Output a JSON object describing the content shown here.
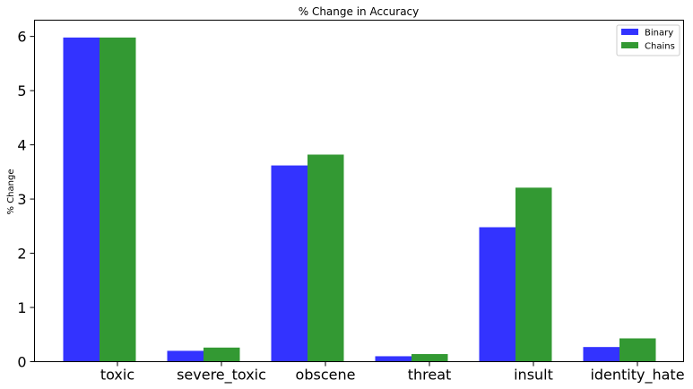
{
  "chart_data": {
    "type": "bar",
    "title": "% Change in Accuracy",
    "xlabel": "",
    "ylabel": "% Change",
    "categories": [
      "toxic",
      "severe_toxic",
      "obscene",
      "threat",
      "insult",
      "identity_hate"
    ],
    "series": [
      {
        "name": "Binary",
        "color": "#3333ff",
        "values": [
          5.98,
          0.2,
          3.62,
          0.1,
          2.48,
          0.27
        ]
      },
      {
        "name": "Chains",
        "color": "#339933",
        "values": [
          5.98,
          0.26,
          3.82,
          0.14,
          3.21,
          0.43
        ]
      }
    ],
    "ylim": [
      0,
      6.3
    ],
    "yticks": [
      0,
      1,
      2,
      3,
      4,
      5,
      6
    ],
    "legend_position": "top-right",
    "grid": false
  }
}
